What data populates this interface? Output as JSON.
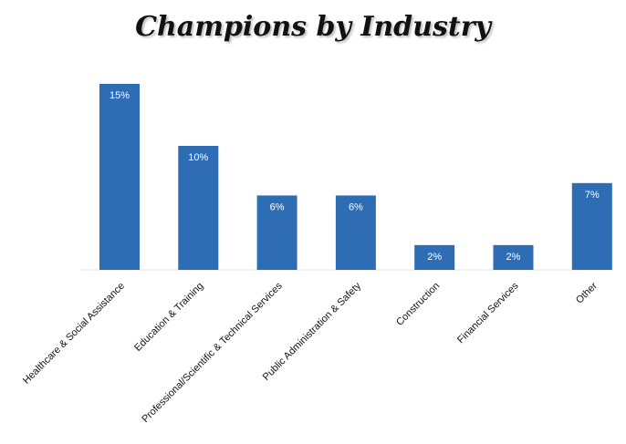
{
  "chart_data": {
    "type": "bar",
    "title": "Champions by Industry",
    "xlabel": "",
    "ylabel": "",
    "categories": [
      "Healthcare & Social Assistance",
      "Education & Training",
      "Professional/Scientific & Technical Services",
      "Public Administration & Safety",
      "Construction",
      "Financial Services",
      "Other"
    ],
    "values": [
      15,
      10,
      6,
      6,
      2,
      2,
      7
    ],
    "value_labels": [
      "15%",
      "10%",
      "6%",
      "6%",
      "2%",
      "2%",
      "7%"
    ],
    "unit": "%",
    "ylim": [
      0,
      15
    ],
    "grid": false,
    "legend": "none",
    "bar_color": "#2E6DB4",
    "label_color": "#ffffff"
  }
}
